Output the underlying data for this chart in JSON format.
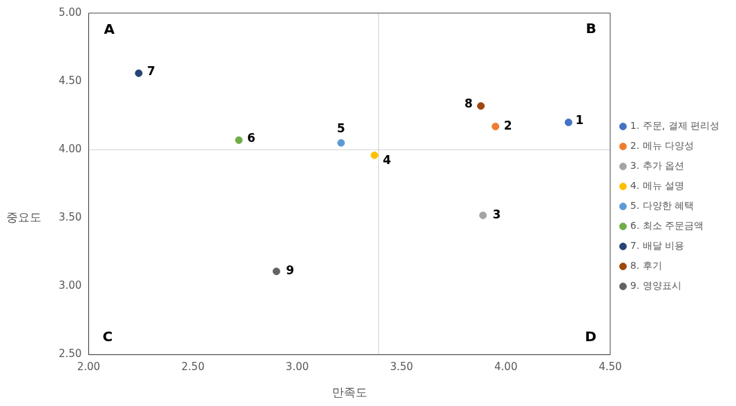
{
  "chart_data": {
    "type": "scatter",
    "xlabel": "만족도",
    "ylabel": "중요도",
    "xlim": [
      2.0,
      4.5
    ],
    "xticks": [
      {
        "value": 2.0,
        "label": "2.00"
      },
      {
        "value": 2.5,
        "label": "2.50"
      },
      {
        "value": 3.0,
        "label": "3.00"
      },
      {
        "value": 3.5,
        "label": "3.50"
      },
      {
        "value": 4.0,
        "label": "4.00"
      },
      {
        "value": 4.5,
        "label": "4.50"
      }
    ],
    "ylim": [
      2.5,
      5.0
    ],
    "yticks": [
      {
        "value": 2.5,
        "label": "2.50"
      },
      {
        "value": 3.0,
        "label": "3.00"
      },
      {
        "value": 3.5,
        "label": "3.50"
      },
      {
        "value": 4.0,
        "label": "4.00"
      },
      {
        "value": 4.5,
        "label": "4.50"
      },
      {
        "value": 5.0,
        "label": "5.00"
      }
    ],
    "grid": false,
    "legend": "right",
    "marker": "circle",
    "ref_lines": [
      {
        "axis": "x",
        "value": 3.39,
        "color": "#d0d0d0"
      },
      {
        "axis": "y",
        "value": 4.0,
        "color": "#d0d0d0"
      }
    ],
    "series": [
      {
        "name": "1. 주문, 결제 편리성",
        "color": "#4472c4",
        "x": [
          4.3
        ],
        "values": [
          4.2
        ]
      },
      {
        "name": "2. 메뉴 다양성",
        "color": "#ed7d31",
        "x": [
          3.95
        ],
        "values": [
          4.17
        ]
      },
      {
        "name": "3. 추가 옵션",
        "color": "#a5a5a5",
        "x": [
          3.89
        ],
        "values": [
          3.52
        ]
      },
      {
        "name": "4. 메뉴 설명",
        "color": "#ffc000",
        "x": [
          3.37
        ],
        "values": [
          3.96
        ]
      },
      {
        "name": "5. 다양한 혜택",
        "color": "#5b9bd5",
        "x": [
          3.21
        ],
        "values": [
          4.05
        ]
      },
      {
        "name": "6. 최소 주문금액",
        "color": "#70ad47",
        "x": [
          2.72
        ],
        "values": [
          4.07
        ]
      },
      {
        "name": "7. 배달 비용",
        "color": "#264478",
        "x": [
          2.24
        ],
        "values": [
          4.56
        ]
      },
      {
        "name": "8. 후기",
        "color": "#9e480e",
        "x": [
          3.88
        ],
        "values": [
          4.32
        ]
      },
      {
        "name": "9. 영양표시",
        "color": "#636363",
        "x": [
          2.9
        ],
        "values": [
          3.11
        ]
      }
    ],
    "annotations": [
      {
        "text": "1",
        "x": 4.3,
        "y": 4.2
      },
      {
        "text": "2",
        "x": 3.95,
        "y": 4.17
      },
      {
        "text": "3",
        "x": 3.89,
        "y": 3.52
      },
      {
        "text": "4",
        "x": 3.37,
        "y": 3.96
      },
      {
        "text": "5",
        "x": 3.21,
        "y": 4.05
      },
      {
        "text": "6",
        "x": 2.72,
        "y": 4.07
      },
      {
        "text": "7",
        "x": 2.24,
        "y": 4.56
      },
      {
        "text": "8",
        "x": 3.88,
        "y": 4.32
      },
      {
        "text": "9",
        "x": 2.9,
        "y": 3.11
      },
      "A",
      "B",
      "C",
      "D"
    ]
  }
}
